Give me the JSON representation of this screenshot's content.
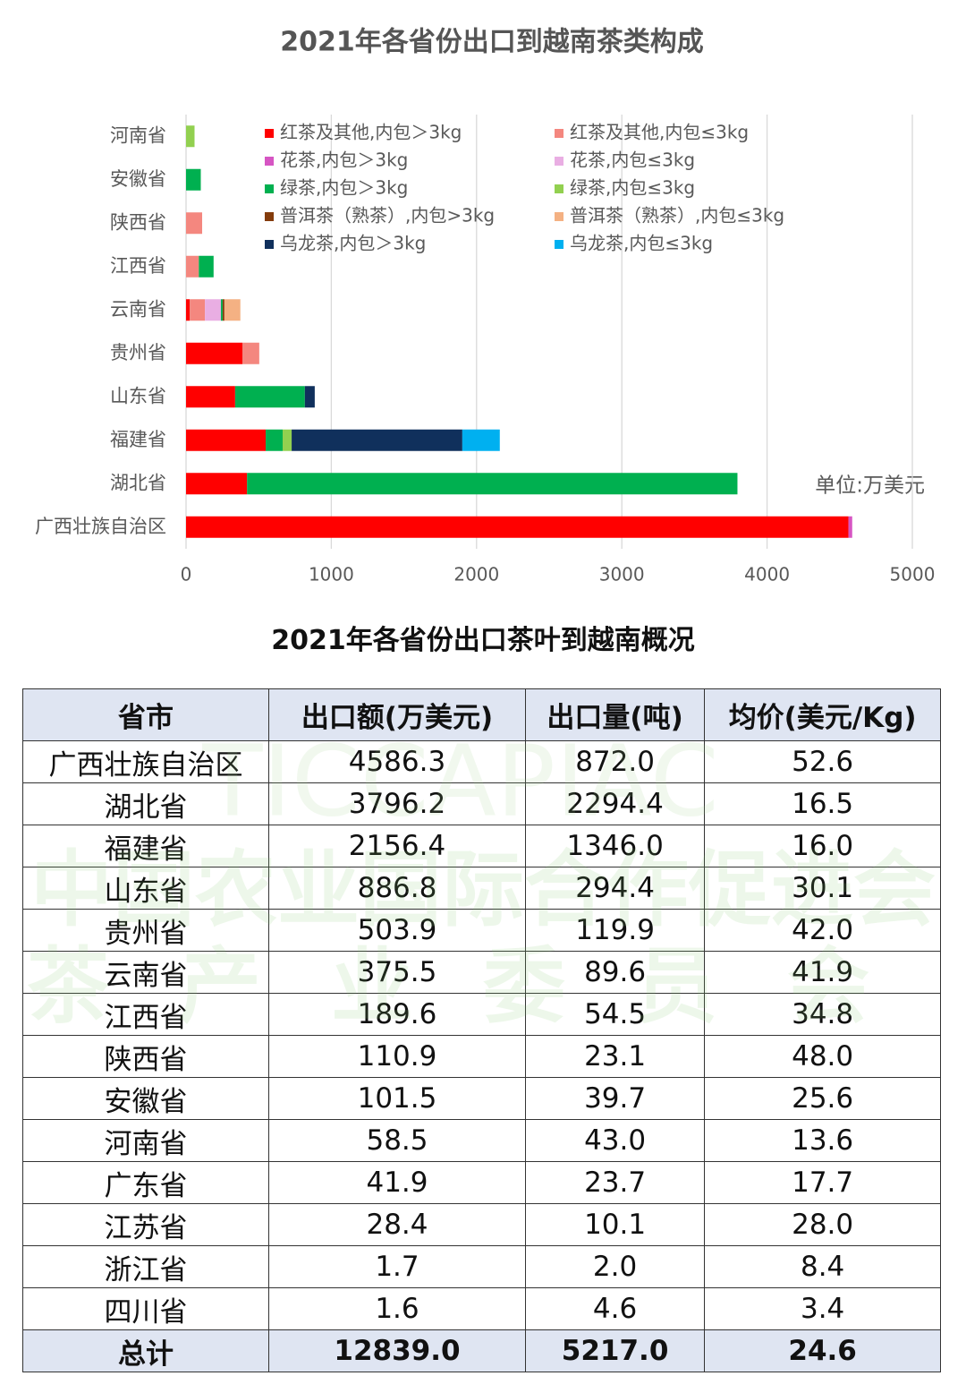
{
  "chart_data": {
    "type": "stacked-bar-horizontal",
    "title": "2021年各省份出口到越南茶类构成",
    "annotation": "单位:万美元",
    "categories": [
      "河南省",
      "安徽省",
      "陕西省",
      "江西省",
      "云南省",
      "贵州省",
      "山东省",
      "福建省",
      "湖北省",
      "广西壮族自治区"
    ],
    "series": [
      {
        "name": "红茶及其他,内包＞3kg",
        "color": "#ff0000",
        "values": [
          0,
          0,
          0,
          0,
          25,
          388,
          338,
          548,
          420,
          4560
        ]
      },
      {
        "name": "红茶及其他,内包≤3kg",
        "color": "#f4877f",
        "values": [
          0,
          0,
          110.9,
          88,
          105,
          116,
          0,
          0,
          0,
          0
        ]
      },
      {
        "name": "花茶,内包＞3kg",
        "color": "#d655c3",
        "values": [
          0,
          0,
          0,
          0,
          0,
          0,
          0,
          0,
          0,
          26
        ]
      },
      {
        "name": "花茶,内包≤3kg",
        "color": "#e9aee3",
        "values": [
          0,
          0,
          0,
          0,
          110,
          0,
          0,
          0,
          0,
          0
        ]
      },
      {
        "name": "绿茶,内包＞3kg",
        "color": "#00b050",
        "values": [
          0,
          101.5,
          0,
          101.6,
          12,
          0,
          480,
          117,
          3376,
          0
        ]
      },
      {
        "name": "绿茶,内包≤3kg",
        "color": "#92d050",
        "values": [
          58.5,
          0,
          0,
          0,
          0,
          0,
          0,
          62,
          0,
          0
        ]
      },
      {
        "name": "普洱茶（熟茶）,内包>3kg",
        "color": "#843c0c",
        "values": [
          0,
          0,
          0,
          0,
          12,
          0,
          0,
          0,
          0,
          0
        ]
      },
      {
        "name": "普洱茶（熟茶）,内包≤3kg",
        "color": "#f4b183",
        "values": [
          0,
          0,
          0,
          0,
          110,
          0,
          0,
          0,
          0,
          0
        ]
      },
      {
        "name": "乌龙茶,内包＞3kg",
        "color": "#10305c",
        "values": [
          0,
          0,
          0,
          0,
          0,
          0,
          68,
          1175,
          0,
          0
        ]
      },
      {
        "name": "乌龙茶,内包≤3kg",
        "color": "#00b0f0",
        "values": [
          0,
          0,
          0,
          0,
          0,
          0,
          0,
          258,
          0,
          0
        ]
      }
    ],
    "xlim": [
      0,
      5000
    ],
    "xticks": [
      0,
      1000,
      2000,
      3000,
      4000,
      5000
    ],
    "grid": true,
    "legend": "top"
  },
  "table_title": "2021年各省份出口茶叶到越南概况",
  "table": {
    "header": [
      "省市",
      "出口额(万美元)",
      "出口量(吨)",
      "均价(美元/Kg)"
    ],
    "rows": [
      [
        "广西壮族自治区",
        "4586.3",
        "872.0",
        "52.6"
      ],
      [
        "湖北省",
        "3796.2",
        "2294.4",
        "16.5"
      ],
      [
        "福建省",
        "2156.4",
        "1346.0",
        "16.0"
      ],
      [
        "山东省",
        "886.8",
        "294.4",
        "30.1"
      ],
      [
        "贵州省",
        "503.9",
        "119.9",
        "42.0"
      ],
      [
        "云南省",
        "375.5",
        "89.6",
        "41.9"
      ],
      [
        "江西省",
        "189.6",
        "54.5",
        "34.8"
      ],
      [
        "陕西省",
        "110.9",
        "23.1",
        "48.0"
      ],
      [
        "安徽省",
        "101.5",
        "39.7",
        "25.6"
      ],
      [
        "河南省",
        "58.5",
        "43.0",
        "13.6"
      ],
      [
        "广东省",
        "41.9",
        "23.7",
        "17.7"
      ],
      [
        "江苏省",
        "28.4",
        "10.1",
        "28.0"
      ],
      [
        "浙江省",
        "1.7",
        "2.0",
        "8.4"
      ],
      [
        "四川省",
        "1.6",
        "4.6",
        "3.4"
      ]
    ],
    "total": [
      "总计",
      "12839.0",
      "5217.0",
      "24.6"
    ]
  },
  "watermark": [
    "TICCAPIAC",
    "中国农业国际合作促进会",
    "茶产业委员会"
  ]
}
